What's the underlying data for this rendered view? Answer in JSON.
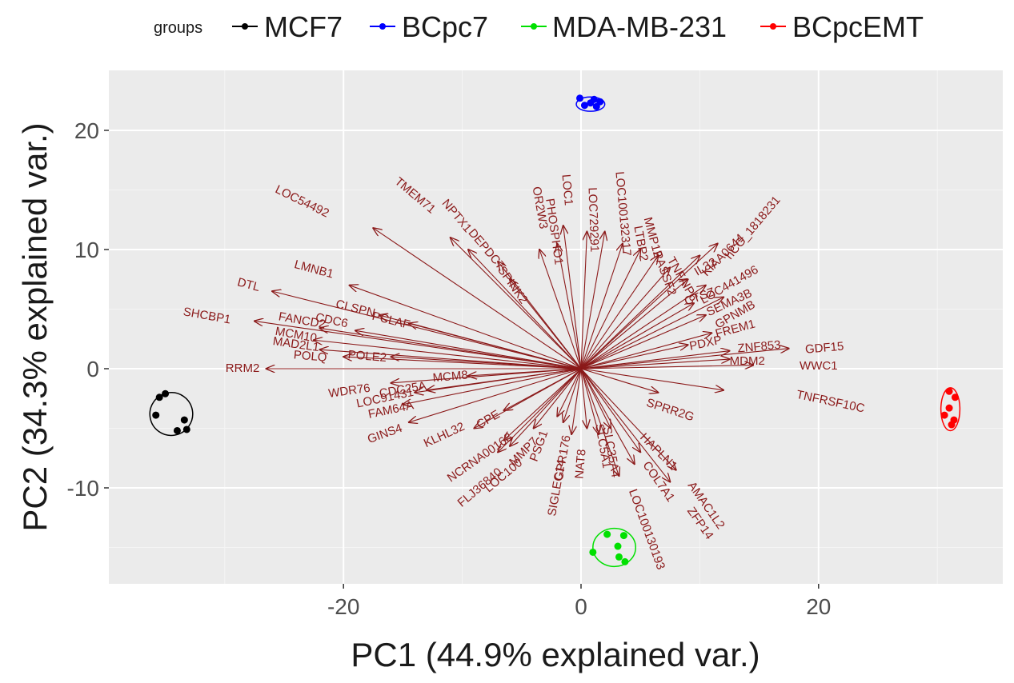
{
  "chart_data": {
    "type": "scatter",
    "subtype": "pca-biplot",
    "xlabel": "PC1 (44.9% explained var.)",
    "ylabel": "PC2 (34.3% explained var.)",
    "xlim": [
      -40,
      36
    ],
    "ylim": [
      -18,
      25
    ],
    "x_ticks": [
      -20,
      0,
      20
    ],
    "y_ticks": [
      -10,
      0,
      10,
      20
    ],
    "grid": true,
    "legend": {
      "title": "groups",
      "position": "top",
      "entries": [
        {
          "name": "MCF7",
          "color": "#000000"
        },
        {
          "name": "BCpc7",
          "color": "#0000ff"
        },
        {
          "name": "MDA-MB-231",
          "color": "#00e000"
        },
        {
          "name": "BCpcEMT",
          "color": "#ff0000"
        }
      ]
    },
    "groups": [
      {
        "name": "MCF7",
        "color": "#000000",
        "points": [
          [
            -35.5,
            -2.4
          ],
          [
            -35.0,
            -2.1
          ],
          [
            -35.8,
            -3.9
          ],
          [
            -33.4,
            -4.3
          ],
          [
            -33.2,
            -5.1
          ],
          [
            -34.0,
            -5.2
          ]
        ],
        "ellipse": {
          "cx": -34.5,
          "cy": -3.8,
          "rx": 1.8,
          "ry": 1.8
        }
      },
      {
        "name": "BCpc7",
        "color": "#0000ff",
        "points": [
          [
            -0.1,
            22.7
          ],
          [
            0.3,
            22.1
          ],
          [
            0.8,
            22.3
          ],
          [
            1.3,
            22.0
          ],
          [
            1.6,
            22.4
          ],
          [
            1.1,
            22.6
          ]
        ],
        "ellipse": {
          "cx": 0.8,
          "cy": 22.2,
          "rx": 1.2,
          "ry": 0.6
        }
      },
      {
        "name": "MDA-MB-231",
        "color": "#00e000",
        "points": [
          [
            1.0,
            -15.4
          ],
          [
            2.2,
            -13.9
          ],
          [
            3.6,
            -14.0
          ],
          [
            3.1,
            -14.9
          ],
          [
            3.2,
            -15.8
          ],
          [
            3.7,
            -16.2
          ]
        ],
        "ellipse": {
          "cx": 2.8,
          "cy": -15.0,
          "rx": 1.8,
          "ry": 1.6
        }
      },
      {
        "name": "BCpcEMT",
        "color": "#ff0000",
        "points": [
          [
            31.0,
            -1.9
          ],
          [
            31.5,
            -2.4
          ],
          [
            31.0,
            -3.3
          ],
          [
            30.6,
            -3.9
          ],
          [
            31.4,
            -4.3
          ],
          [
            31.2,
            -4.7
          ]
        ],
        "ellipse": {
          "cx": 31.1,
          "cy": -3.4,
          "rx": 0.8,
          "ry": 1.8
        }
      }
    ],
    "loading_color": "#8b1a1a",
    "loadings": [
      {
        "label": "LOC54492",
        "x": -17.5,
        "y": 11.8,
        "lx": -23.5,
        "ly": 14.0,
        "angle": 26
      },
      {
        "label": "TMEM71",
        "x": -11.0,
        "y": 11.0,
        "lx": -14.0,
        "ly": 14.5,
        "angle": 40
      },
      {
        "label": "NPTX1",
        "x": -9.5,
        "y": 10.0,
        "lx": -10.5,
        "ly": 12.8,
        "angle": 50
      },
      {
        "label": "DEPDC7",
        "x": -7.0,
        "y": 9.0,
        "lx": -8.0,
        "ly": 10.0,
        "angle": 50
      },
      {
        "label": "SPINK2",
        "x": -6.0,
        "y": 7.5,
        "lx": -5.8,
        "ly": 7.0,
        "angle": 55
      },
      {
        "label": "OR2W3",
        "x": -3.5,
        "y": 10.0,
        "lx": -3.5,
        "ly": 13.5,
        "angle": 80
      },
      {
        "label": "PHOSPHO1",
        "x": -2.0,
        "y": 10.5,
        "lx": -2.3,
        "ly": 11.5,
        "angle": 82
      },
      {
        "label": "LOC1",
        "x": -1.5,
        "y": 12.0,
        "lx": -1.2,
        "ly": 15.0,
        "angle": 85
      },
      {
        "label": "LOC729291",
        "x": 0.5,
        "y": 11.5,
        "lx": 1.0,
        "ly": 12.5,
        "angle": 88
      },
      {
        "label": "LOC100132317",
        "x": 2.0,
        "y": 11.5,
        "lx": 3.5,
        "ly": 13.0,
        "angle": 85
      },
      {
        "label": "LTBP2",
        "x": 3.5,
        "y": 10.5,
        "lx": 5.0,
        "ly": 10.5,
        "angle": 80
      },
      {
        "label": "MMP12",
        "x": 5.0,
        "y": 10.0,
        "lx": 6.0,
        "ly": 11.0,
        "angle": 75
      },
      {
        "label": "RASSF2",
        "x": 6.5,
        "y": 9.5,
        "lx": 7.0,
        "ly": 8.0,
        "angle": 70
      },
      {
        "label": "TNFAIP6",
        "x": 7.5,
        "y": 8.5,
        "lx": 8.5,
        "ly": 7.5,
        "angle": 60
      },
      {
        "label": "hCG_1818231",
        "x": 11.5,
        "y": 10.5,
        "lx": 14.5,
        "ly": 11.8,
        "angle": -50
      },
      {
        "label": "KIAA0644",
        "x": 10.0,
        "y": 9.5,
        "lx": 12.0,
        "ly": 9.5,
        "angle": -45
      },
      {
        "label": "LOC441496",
        "x": 10.5,
        "y": 7.0,
        "lx": 12.5,
        "ly": 7.0,
        "angle": -30
      },
      {
        "label": "IL32",
        "x": 9.0,
        "y": 7.5,
        "lx": 10.5,
        "ly": 8.5,
        "angle": -30
      },
      {
        "label": "SEMA3B",
        "x": 12.0,
        "y": 6.0,
        "lx": 12.5,
        "ly": 5.5,
        "angle": -25
      },
      {
        "label": "CTSZ",
        "x": 9.5,
        "y": 5.5,
        "lx": 10.0,
        "ly": 6.0,
        "angle": -20
      },
      {
        "label": "GPNMB",
        "x": 10.5,
        "y": 4.5,
        "lx": 13.0,
        "ly": 4.5,
        "angle": -30
      },
      {
        "label": "FREM1",
        "x": 11.0,
        "y": 3.0,
        "lx": 13.0,
        "ly": 3.3,
        "angle": -15
      },
      {
        "label": "PDXP",
        "x": 9.0,
        "y": 2.0,
        "lx": 10.5,
        "ly": 2.1,
        "angle": -12
      },
      {
        "label": "ZNF853",
        "x": 12.5,
        "y": 1.5,
        "lx": 15.0,
        "ly": 1.8,
        "angle": -5
      },
      {
        "label": "GDF15",
        "x": 17.5,
        "y": 1.7,
        "lx": 20.5,
        "ly": 1.7,
        "angle": -5
      },
      {
        "label": "MDM2",
        "x": 12.5,
        "y": 0.8,
        "lx": 14.0,
        "ly": 0.6,
        "angle": 0
      },
      {
        "label": "WWC1",
        "x": 14.5,
        "y": 0.3,
        "lx": 20.0,
        "ly": 0.2,
        "angle": 0
      },
      {
        "label": "TNFRSF10C",
        "x": 12.0,
        "y": -1.8,
        "lx": 21.0,
        "ly": -2.8,
        "angle": 12
      },
      {
        "label": "SPRR2G",
        "x": 6.5,
        "y": -2.0,
        "lx": 7.5,
        "ly": -3.5,
        "angle": 18
      },
      {
        "label": "HAPLN1",
        "x": 5.0,
        "y": -7.0,
        "lx": 6.5,
        "ly": -7.0,
        "angle": 45
      },
      {
        "label": "COL7A1",
        "x": 4.5,
        "y": -8.0,
        "lx": 6.5,
        "ly": -9.5,
        "angle": 55
      },
      {
        "label": "AMAC1L2",
        "x": 8.0,
        "y": -8.5,
        "lx": 10.5,
        "ly": -11.5,
        "angle": 55
      },
      {
        "label": "ZFP14",
        "x": 7.5,
        "y": -9.5,
        "lx": 10.0,
        "ly": -13.0,
        "angle": 55
      },
      {
        "label": "LOC100130193",
        "x": 3.2,
        "y": -9.0,
        "lx": 5.5,
        "ly": -13.5,
        "angle": 70
      },
      {
        "label": "SLC35A4",
        "x": 2.5,
        "y": -5.0,
        "lx": 2.5,
        "ly": -7.0,
        "angle": 80
      },
      {
        "label": "SLC5A1",
        "x": 1.5,
        "y": -5.5,
        "lx": 1.8,
        "ly": -6.5,
        "angle": 80
      },
      {
        "label": "NAT8",
        "x": 0.5,
        "y": -5.0,
        "lx": 0.0,
        "ly": -8.0,
        "angle": -85
      },
      {
        "label": "SIGLEC14",
        "x": -0.8,
        "y": -5.5,
        "lx": -2.0,
        "ly": -10.0,
        "angle": -80
      },
      {
        "label": "GPR176",
        "x": -1.5,
        "y": -4.5,
        "lx": -1.5,
        "ly": -7.5,
        "angle": -80
      },
      {
        "label": "PSG1",
        "x": -2.0,
        "y": -4.0,
        "lx": -3.5,
        "ly": -6.5,
        "angle": -70
      },
      {
        "label": "MMP7",
        "x": -4.0,
        "y": -5.0,
        "lx": -4.8,
        "ly": -7.0,
        "angle": -45
      },
      {
        "label": "FLJ36840",
        "x": -7.0,
        "y": -7.0,
        "lx": -8.5,
        "ly": -10.0,
        "angle": -40
      },
      {
        "label": "NCRNA00168",
        "x": -6.5,
        "y": -6.0,
        "lx": -8.5,
        "ly": -7.5,
        "angle": -35
      },
      {
        "label": "LOC100",
        "x": -6.0,
        "y": -6.5,
        "lx": -6.5,
        "ly": -9.0,
        "angle": -40
      },
      {
        "label": "KLHL32",
        "x": -9.0,
        "y": -5.0,
        "lx": -11.5,
        "ly": -5.6,
        "angle": -25
      },
      {
        "label": "CPE",
        "x": -6.5,
        "y": -3.5,
        "lx": -7.8,
        "ly": -4.3,
        "angle": -30
      },
      {
        "label": "GINS4",
        "x": -14.5,
        "y": -4.5,
        "lx": -16.5,
        "ly": -5.5,
        "angle": -20
      },
      {
        "label": "FAM64A",
        "x": -15.0,
        "y": -3.0,
        "lx": -16.0,
        "ly": -3.5,
        "angle": -12
      },
      {
        "label": "LOC91431",
        "x": -14.0,
        "y": -2.0,
        "lx": -16.5,
        "ly": -2.5,
        "angle": -12
      },
      {
        "label": "CDC25A",
        "x": -13.0,
        "y": -1.8,
        "lx": -15.0,
        "ly": -1.8,
        "angle": -10
      },
      {
        "label": "WDR76",
        "x": -16.0,
        "y": -1.2,
        "lx": -19.5,
        "ly": -1.9,
        "angle": -8
      },
      {
        "label": "MCM8",
        "x": -9.5,
        "y": -0.6,
        "lx": -11.0,
        "ly": -0.7,
        "angle": -5
      },
      {
        "label": "RRM2",
        "x": -26.5,
        "y": 0.0,
        "lx": -28.5,
        "ly": 0.0,
        "angle": 0
      },
      {
        "label": "POLQ",
        "x": -20.0,
        "y": 1.0,
        "lx": -22.8,
        "ly": 1.0,
        "angle": 5
      },
      {
        "label": "POLE2",
        "x": -16.0,
        "y": 1.0,
        "lx": -18.0,
        "ly": 1.0,
        "angle": 5
      },
      {
        "label": "MAD2L1",
        "x": -22.0,
        "y": 1.6,
        "lx": -24.0,
        "ly": 2.0,
        "angle": 8
      },
      {
        "label": "MCM10",
        "x": -22.5,
        "y": 2.4,
        "lx": -24.0,
        "ly": 2.8,
        "angle": 10
      },
      {
        "label": "FANCD2",
        "x": -22.0,
        "y": 3.4,
        "lx": -23.5,
        "ly": 4.0,
        "angle": 10
      },
      {
        "label": "CDC6",
        "x": -19.0,
        "y": 3.2,
        "lx": -21.0,
        "ly": 4.0,
        "angle": 12
      },
      {
        "label": "SHCBP1",
        "x": -27.5,
        "y": 4.0,
        "lx": -31.5,
        "ly": 4.4,
        "angle": 10
      },
      {
        "label": "CLSPN",
        "x": -17.0,
        "y": 4.5,
        "lx": -19.0,
        "ly": 5.0,
        "angle": 14
      },
      {
        "label": "PCLAF",
        "x": -14.5,
        "y": 3.8,
        "lx": -16.0,
        "ly": 4.0,
        "angle": 14
      },
      {
        "label": "DTL",
        "x": -26.0,
        "y": 6.5,
        "lx": -28.0,
        "ly": 7.0,
        "angle": 15
      },
      {
        "label": "LMNB1",
        "x": -19.5,
        "y": 7.0,
        "lx": -22.5,
        "ly": 8.3,
        "angle": 15
      }
    ]
  }
}
